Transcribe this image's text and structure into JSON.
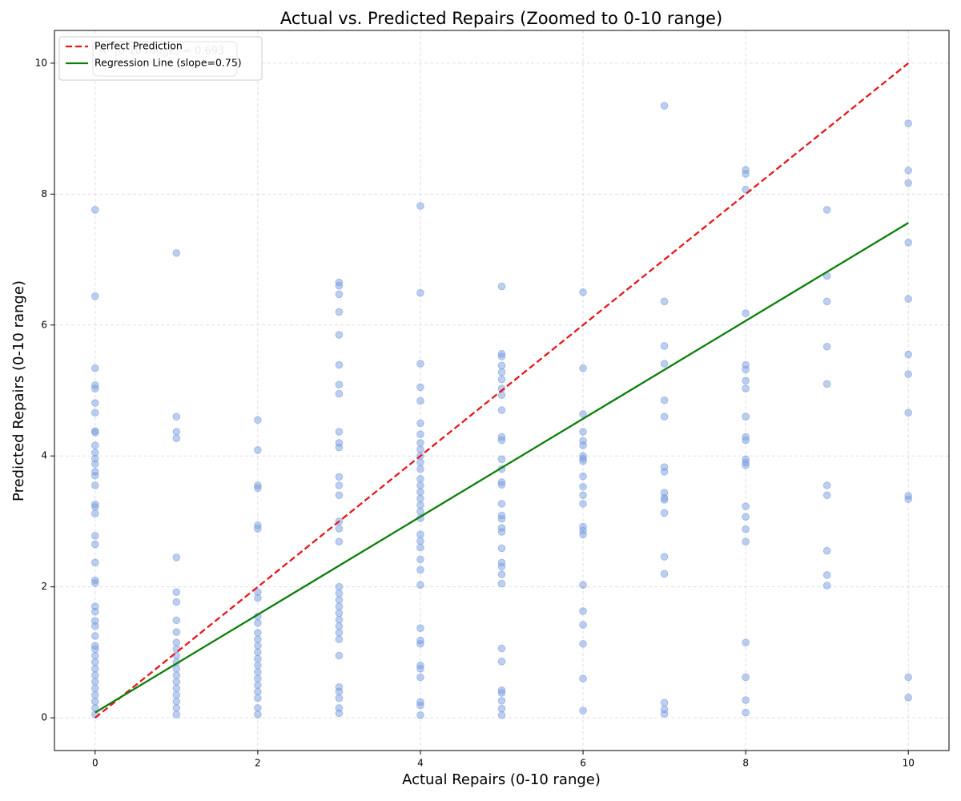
{
  "chart_data": {
    "type": "scatter",
    "title": "Actual vs. Predicted Repairs (Zoomed to 0-10 range)",
    "x_label": "Actual Repairs (0-10 range)",
    "y_label": "Predicted Repairs (0-10 range)",
    "annotation": "R² (0-10 range) = 0.693",
    "xlim": [
      -0.5,
      10.5
    ],
    "ylim": [
      -0.5,
      10.5
    ],
    "xticks": [
      0,
      2,
      4,
      6,
      8,
      10
    ],
    "yticks": [
      0,
      2,
      4,
      6,
      8,
      10
    ],
    "grid": true,
    "legend": "upper left",
    "points": {
      "color": "#7b9fe0",
      "x": [
        0,
        0,
        0,
        0,
        0,
        0,
        0,
        0,
        0,
        0,
        0,
        0,
        0,
        0,
        0,
        0,
        0,
        0,
        0,
        0,
        0,
        0,
        0,
        0,
        0,
        0,
        0,
        0,
        0,
        0,
        0,
        0,
        0,
        0,
        0,
        0,
        0,
        0,
        0,
        0,
        0,
        1,
        1,
        1,
        1,
        1,
        1,
        1,
        1,
        1,
        1,
        1,
        1,
        1,
        1,
        1,
        1,
        1,
        1,
        1,
        1,
        1,
        2,
        2,
        2,
        2,
        2,
        2,
        2,
        2,
        2,
        2,
        2,
        2,
        2,
        2,
        2,
        2,
        2,
        2,
        2,
        2,
        2,
        2,
        2,
        3,
        3,
        3,
        3,
        3,
        3,
        3,
        3,
        3,
        3,
        3,
        3,
        3,
        3,
        3,
        3,
        3,
        3,
        3,
        3,
        3,
        3,
        3,
        3,
        3,
        3,
        3,
        3,
        3,
        3,
        3,
        3,
        4,
        4,
        4,
        4,
        4,
        4,
        4,
        4,
        4,
        4,
        4,
        4,
        4,
        4,
        4,
        4,
        4,
        4,
        4,
        4,
        4,
        4,
        4,
        4,
        4,
        4,
        4,
        4,
        4,
        4,
        4,
        4,
        4,
        4,
        5,
        5,
        5,
        5,
        5,
        5,
        5,
        5,
        5,
        5,
        5,
        5,
        5,
        5,
        5,
        5,
        5,
        5,
        5,
        5,
        5,
        5,
        5,
        5,
        5,
        5,
        5,
        5,
        5,
        5,
        5,
        5,
        6,
        6,
        6,
        6,
        6,
        6,
        6,
        6,
        6,
        6,
        6,
        6,
        6,
        6,
        6,
        6,
        6,
        6,
        6,
        6,
        6,
        6,
        7,
        7,
        7,
        7,
        7,
        7,
        7,
        7,
        7,
        7,
        7,
        7,
        7,
        7,
        7,
        7,
        7,
        8,
        8,
        8,
        8,
        8,
        8,
        8,
        8,
        8,
        8,
        8,
        8,
        8,
        8,
        8,
        8,
        8,
        8,
        8,
        8,
        8,
        8,
        9,
        9,
        9,
        9,
        9,
        9,
        9,
        9,
        9,
        9,
        10,
        10,
        10,
        10,
        10,
        10,
        10,
        10,
        10,
        10,
        10,
        10
      ],
      "values": [
        7.76,
        6.44,
        5.34,
        5.08,
        5.03,
        4.81,
        4.66,
        4.38,
        4.36,
        4.16,
        4.05,
        3.96,
        3.88,
        3.76,
        3.7,
        3.55,
        3.26,
        3.22,
        3.12,
        2.78,
        2.65,
        2.37,
        2.1,
        2.06,
        1.7,
        1.62,
        1.48,
        1.4,
        1.25,
        1.1,
        1.05,
        0.95,
        0.85,
        0.75,
        0.65,
        0.55,
        0.45,
        0.35,
        0.25,
        0.15,
        0.05,
        7.1,
        4.6,
        4.37,
        4.27,
        2.45,
        1.92,
        1.77,
        1.49,
        1.31,
        1.15,
        1.05,
        0.95,
        0.85,
        0.75,
        0.65,
        0.55,
        0.45,
        0.35,
        0.25,
        0.15,
        0.05,
        4.55,
        4.09,
        3.55,
        3.51,
        2.94,
        2.89,
        1.92,
        1.83,
        1.55,
        1.45,
        1.3,
        1.2,
        1.1,
        1.0,
        0.9,
        0.8,
        0.7,
        0.6,
        0.5,
        0.4,
        0.3,
        0.15,
        0.05,
        6.65,
        6.6,
        6.47,
        6.2,
        5.85,
        5.39,
        5.09,
        4.95,
        4.37,
        4.2,
        4.13,
        3.68,
        3.55,
        3.4,
        3.0,
        2.89,
        2.69,
        2.0,
        1.9,
        1.8,
        1.7,
        1.6,
        1.5,
        1.4,
        1.3,
        1.2,
        0.95,
        0.47,
        0.4,
        0.3,
        0.15,
        0.07,
        7.82,
        6.49,
        5.41,
        5.05,
        4.84,
        4.5,
        4.33,
        4.2,
        4.1,
        4.0,
        3.9,
        3.8,
        3.65,
        3.55,
        3.45,
        3.35,
        3.25,
        3.15,
        3.05,
        2.8,
        2.7,
        2.6,
        2.42,
        2.26,
        2.03,
        1.37,
        1.18,
        1.13,
        0.8,
        0.75,
        0.62,
        0.24,
        0.19,
        0.04,
        6.59,
        5.56,
        5.52,
        5.38,
        5.28,
        5.17,
        5.03,
        4.93,
        4.7,
        4.29,
        4.24,
        3.95,
        3.8,
        3.6,
        3.56,
        3.27,
        3.09,
        3.04,
        2.9,
        2.84,
        2.59,
        2.37,
        2.31,
        2.19,
        2.05,
        1.06,
        0.86,
        0.42,
        0.38,
        0.26,
        0.14,
        0.04,
        6.5,
        5.34,
        4.64,
        4.37,
        4.23,
        4.16,
        4.0,
        3.96,
        3.92,
        3.69,
        3.53,
        3.4,
        3.27,
        2.92,
        2.86,
        2.8,
        2.03,
        1.63,
        1.42,
        1.13,
        0.6,
        0.11,
        9.35,
        6.36,
        5.68,
        5.41,
        4.85,
        4.6,
        3.83,
        3.76,
        3.44,
        3.36,
        3.33,
        3.13,
        2.46,
        2.2,
        0.23,
        0.13,
        0.06,
        8.37,
        8.31,
        8.07,
        6.18,
        5.39,
        5.32,
        5.15,
        5.03,
        4.6,
        4.29,
        4.24,
        3.95,
        3.9,
        3.86,
        3.23,
        3.07,
        2.88,
        2.69,
        1.15,
        0.62,
        0.27,
        0.08,
        7.76,
        6.75,
        6.36,
        5.67,
        5.1,
        3.55,
        3.4,
        2.55,
        2.18,
        2.02,
        9.08,
        8.36,
        8.17,
        7.26,
        6.4,
        5.55,
        5.25,
        4.66,
        3.39,
        3.34,
        0.62,
        0.31
      ]
    },
    "series": [
      {
        "name": "Perfect Prediction",
        "type": "line",
        "color": "#e8161b",
        "dashed": true,
        "x": [
          0,
          10
        ],
        "values": [
          0,
          10
        ]
      },
      {
        "name": "Regression Line (slope=0.75)",
        "type": "line",
        "color": "#0a7f0a",
        "dashed": false,
        "x": [
          0,
          10
        ],
        "values": [
          0.08,
          7.56
        ]
      }
    ]
  }
}
